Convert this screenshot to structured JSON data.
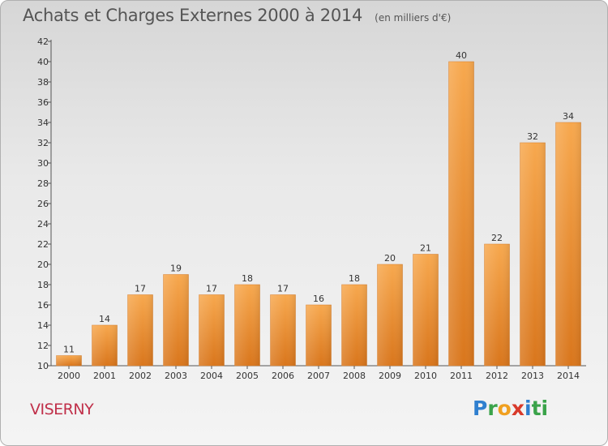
{
  "header": {
    "title": "Achats et Charges Externes 2000 à 2014",
    "subtitle": "(en milliers d'€)"
  },
  "footer": {
    "location": "VISERNY",
    "logo_letters": [
      "P",
      "r",
      "o",
      "x",
      "i",
      "ti"
    ]
  },
  "colors": {
    "bar_light": "#f7a84e",
    "bar_dark": "#d9761c",
    "text": "#555555",
    "location": "#c0304a"
  },
  "chart_data": {
    "type": "bar",
    "title": "Achats et Charges Externes 2000 à 2014",
    "subtitle": "(en milliers d'€)",
    "xlabel": "",
    "ylabel": "",
    "categories": [
      "2000",
      "2001",
      "2002",
      "2003",
      "2004",
      "2005",
      "2006",
      "2007",
      "2008",
      "2009",
      "2010",
      "2011",
      "2012",
      "2013",
      "2014"
    ],
    "values": [
      11,
      14,
      17,
      19,
      17,
      18,
      17,
      16,
      18,
      20,
      21,
      40,
      22,
      32,
      34
    ],
    "ylim": [
      10,
      42
    ],
    "yticks": [
      10,
      12,
      14,
      16,
      18,
      20,
      22,
      24,
      26,
      28,
      30,
      32,
      34,
      36,
      38,
      40,
      42
    ],
    "grid": false,
    "legend": "none"
  }
}
